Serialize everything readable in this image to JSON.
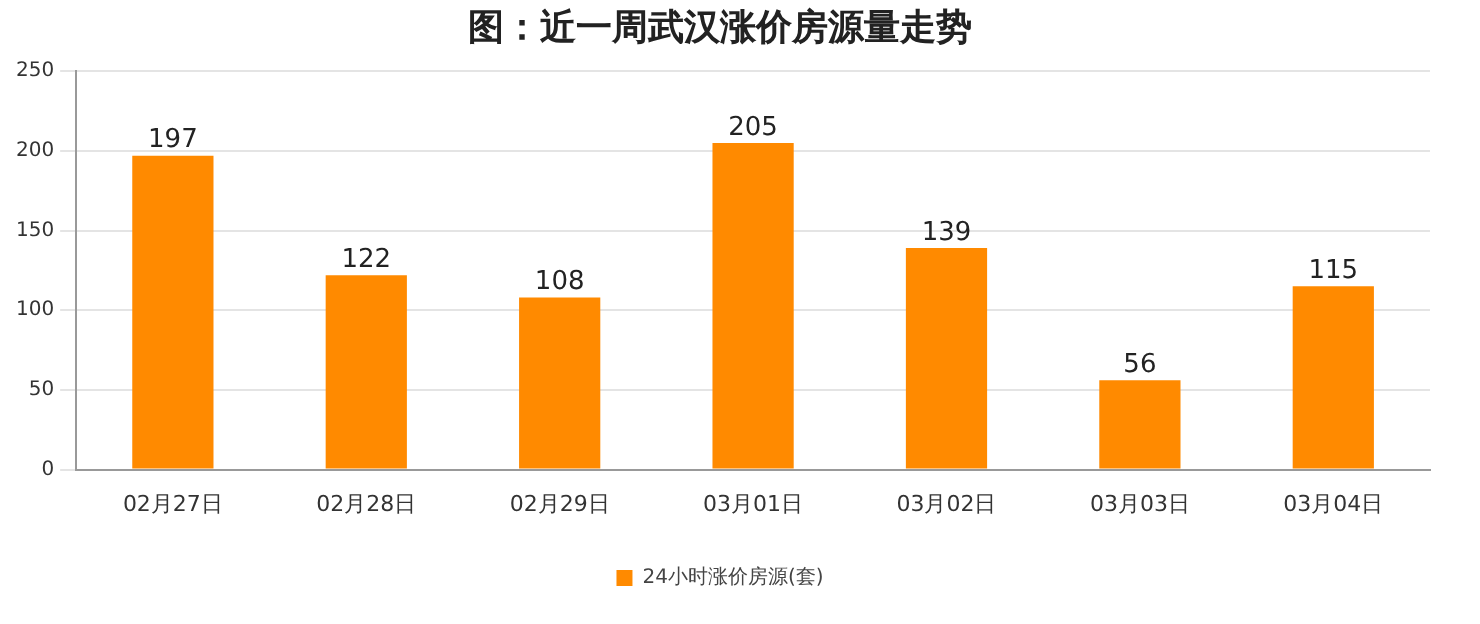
{
  "chart_data": {
    "type": "bar",
    "title": "图：近一周武汉涨价房源量走势",
    "categories": [
      "02月27日",
      "02月28日",
      "02月29日",
      "03月01日",
      "03月02日",
      "03月03日",
      "03月04日"
    ],
    "series": [
      {
        "name": "24小时涨价房源(套)",
        "color": "#ff8a00",
        "values": [
          197,
          122,
          108,
          205,
          139,
          56,
          115
        ]
      }
    ],
    "ylim": [
      0,
      250
    ],
    "yticks": [
      0,
      50,
      100,
      150,
      200,
      250
    ],
    "grid": "y",
    "legend": "bottom",
    "data_labels": true
  }
}
